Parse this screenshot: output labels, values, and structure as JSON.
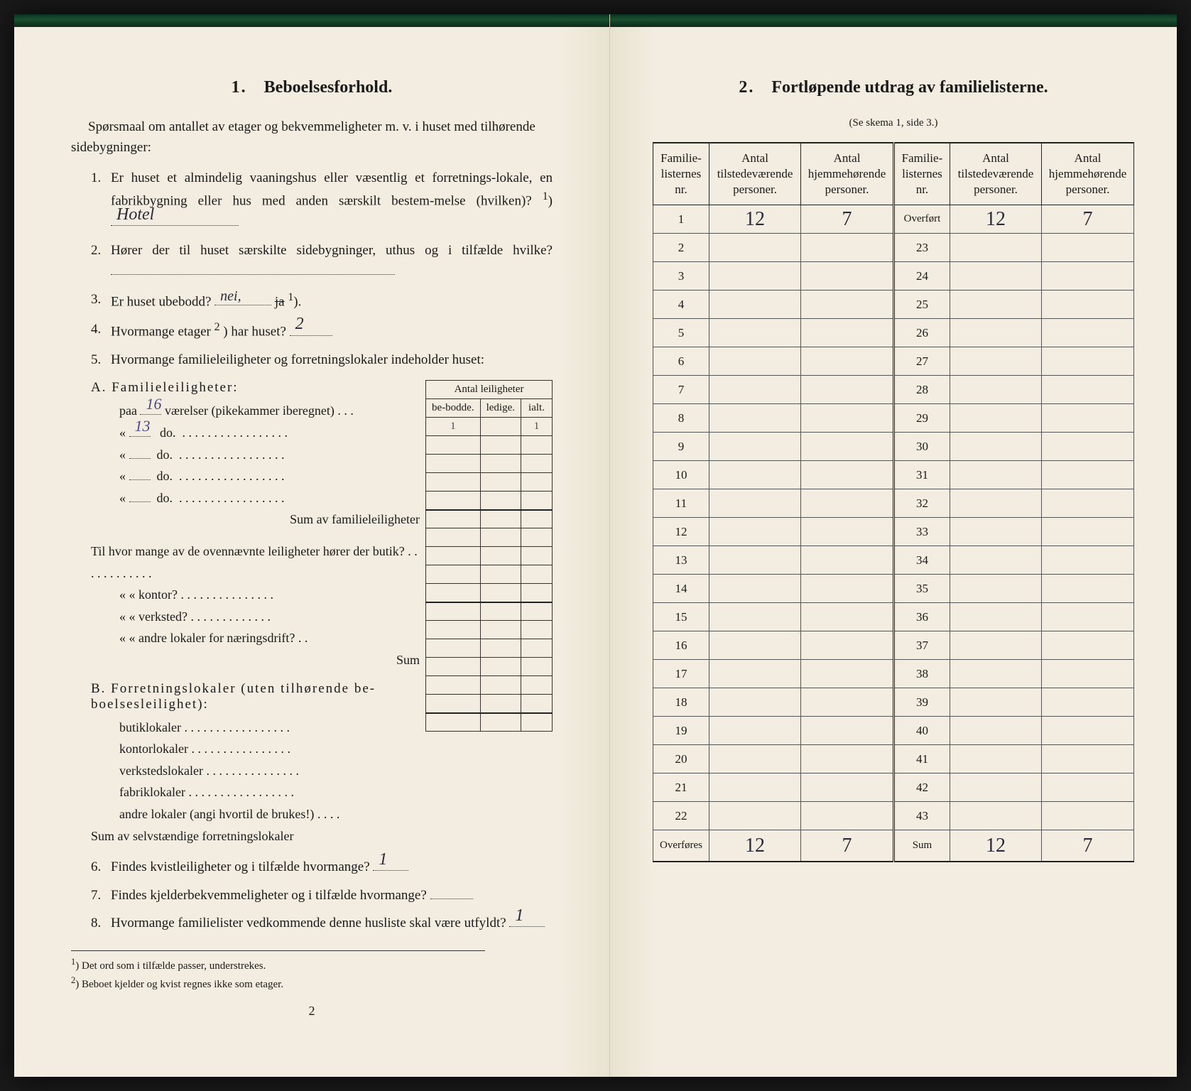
{
  "left": {
    "section_number": "1.",
    "section_title": "Beboelsesforhold.",
    "intro": "Spørsmaal om antallet av etager og bekvemmeligheter m. v. i huset med tilhørende sidebygninger:",
    "q1_a": "Er huset et almindelig vaaningshus eller væsentlig et forretnings-lokale, en fabrikbygning eller hus med anden særskilt bestem-melse (hvilken)?",
    "q1_sup": "1",
    "q1_answer": "Hotel",
    "q2": "Hører der til huset særskilte sidebygninger, uthus og i tilfælde hvilke?",
    "q3": "Er huset ubebodd?",
    "q3_answer": "nei,",
    "q3_struck": "ja",
    "q3_sup": "1",
    "q4": "Hvormange etager",
    "q4_sup": "2",
    "q4_rest": ") har huset?",
    "q4_answer": "2",
    "q5": "Hvormange familieleiligheter og forretningslokaler indeholder huset:",
    "mini": {
      "header_span": "Antal leiligheter",
      "col1": "be-bodde.",
      "col2": "ledige.",
      "col3": "ialt.",
      "a_val1": "1",
      "a_val3": "1"
    },
    "A_heading": "A. Familieleiligheter:",
    "A_row1_pre": "paa",
    "A_row1_hand": "16",
    "A_row1_rest": "værelser (pikekammer iberegnet) . . .",
    "A_row2_hand": "13",
    "A_do": "do.",
    "A_sum": "Sum av familieleiligheter",
    "mid_q1": "Til hvor mange av de ovennævnte leiligheter hører der butik?",
    "mid_q2": "« « kontor?",
    "mid_q3": "« « verksted?",
    "mid_q4": "« « andre lokaler for næringsdrift?",
    "mid_sum": "Sum",
    "B_heading": "B. Forretningslokaler (uten tilhørende be-boelsesleilighet):",
    "B_r1": "butiklokaler",
    "B_r2": "kontorlokaler",
    "B_r3": "verkstedslokaler",
    "B_r4": "fabriklokaler",
    "B_r5": "andre lokaler (angi hvortil de brukes!)",
    "B_sum": "Sum av selvstændige forretningslokaler",
    "q6": "Findes kvistleiligheter og i tilfælde hvormange?",
    "q6_answer": "1",
    "q7": "Findes kjelderbekvemmeligheter og i tilfælde hvormange?",
    "q8": "Hvormange familielister vedkommende denne husliste skal være utfyldt?",
    "q8_answer": "1",
    "fn1": "Det ord som i tilfælde passer, understrekes.",
    "fn1_sup": "1",
    "fn2": "Beboet kjelder og kvist regnes ikke som etager.",
    "fn2_sup": "2",
    "page_num": "2"
  },
  "right": {
    "section_number": "2.",
    "section_title": "Fortløpende utdrag av familielisterne.",
    "subtitle": "(Se skema 1, side 3.)",
    "headers": {
      "c1": "Familie-listernes nr.",
      "c2": "Antal tilstedeværende personer.",
      "c3": "Antal hjemmehørende personer.",
      "c4": "Familie-listernes nr.",
      "c5": "Antal tilstedeværende personer.",
      "c6": "Antal hjemmehørende personer."
    },
    "row1": {
      "n": "1",
      "v2": "12",
      "v3": "7",
      "n4": "Overført",
      "v5": "12",
      "v6": "7"
    },
    "overfores": "Overføres",
    "sum_label": "Sum",
    "foot": {
      "v2": "12",
      "v3": "7",
      "v5": "12",
      "v6": "7"
    },
    "left_nums": [
      "2",
      "3",
      "4",
      "5",
      "6",
      "7",
      "8",
      "9",
      "10",
      "11",
      "12",
      "13",
      "14",
      "15",
      "16",
      "17",
      "18",
      "19",
      "20",
      "21",
      "22"
    ],
    "right_nums": [
      "23",
      "24",
      "25",
      "26",
      "27",
      "28",
      "29",
      "30",
      "31",
      "32",
      "33",
      "34",
      "35",
      "36",
      "37",
      "38",
      "39",
      "40",
      "41",
      "42",
      "43"
    ]
  }
}
